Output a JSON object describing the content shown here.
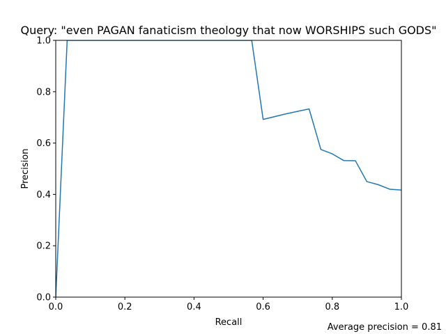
{
  "chart_data": {
    "type": "line",
    "title": "Query: \"even PAGAN fanaticism theology that now WORSHIPS such GODS\"",
    "xlabel": "Recall",
    "ylabel": "Precision",
    "xlim": [
      0,
      1
    ],
    "ylim": [
      0,
      1
    ],
    "xticks": [
      "0.0",
      "0.2",
      "0.4",
      "0.6",
      "0.8",
      "1.0"
    ],
    "yticks": [
      "0.0",
      "0.2",
      "0.4",
      "0.6",
      "0.8",
      "1.0"
    ],
    "grid": false,
    "series_color": "#1f77b4",
    "series": [
      {
        "x": [
          0.0,
          0.033,
          0.567,
          0.6,
          0.667,
          0.733,
          0.767,
          0.8,
          0.833,
          0.867,
          0.9,
          0.933,
          0.967,
          1.0
        ],
        "values": [
          0.0,
          1.0,
          1.0,
          0.692,
          0.714,
          0.733,
          0.575,
          0.558,
          0.532,
          0.531,
          0.45,
          0.438,
          0.42,
          0.417
        ]
      }
    ],
    "annotation": "Average precision = 0.81"
  }
}
